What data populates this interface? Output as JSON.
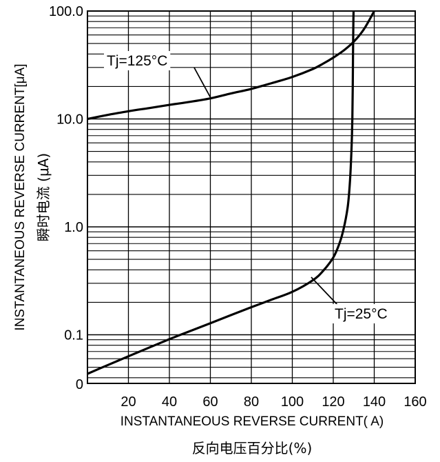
{
  "chart_data": {
    "type": "line",
    "title": "",
    "xlabel": "INSTANTANEOUS REVERSE CURRENT( A)",
    "xlabel_cn": "反向电压百分比(%)",
    "ylabel": "INSTANTANEOUS REVERSE CURRENT[μA]",
    "ylabel_cn": "瞬时电流 (μA)",
    "xlim": [
      0,
      160
    ],
    "ylim": [
      0.0316,
      100
    ],
    "y_scale": "log",
    "grid": true,
    "x_ticks": [
      "20",
      "40",
      "60",
      "80",
      "100",
      "120",
      "140",
      "160"
    ],
    "y_ticks": [
      {
        "label": "100.0",
        "value": 100
      },
      {
        "label": "10.0",
        "value": 10
      },
      {
        "label": "1.0",
        "value": 1
      },
      {
        "label": "0.1",
        "value": 0.1
      }
    ],
    "y_zero_label": "0",
    "series": [
      {
        "name": "Tj=125°C",
        "x": [
          0,
          10,
          20,
          30,
          40,
          50,
          60,
          70,
          80,
          90,
          100,
          110,
          115,
          120,
          125,
          130,
          135,
          140
        ],
        "y": [
          10,
          10.9,
          11.8,
          12.6,
          13.5,
          14.4,
          15.5,
          17.2,
          19,
          21.5,
          24.5,
          29,
          32.5,
          37,
          43,
          52,
          68,
          100
        ]
      },
      {
        "name": "Tj=25°C",
        "x": [
          0,
          10,
          20,
          30,
          40,
          50,
          60,
          70,
          80,
          90,
          100,
          110,
          115,
          120,
          123,
          125,
          127,
          128,
          128.5,
          129,
          129.3,
          129.5,
          129.6,
          129.7,
          129.8,
          129.9
        ],
        "y": [
          0.0435,
          0.0525,
          0.0632,
          0.076,
          0.091,
          0.108,
          0.128,
          0.152,
          0.18,
          0.212,
          0.25,
          0.32,
          0.39,
          0.52,
          0.7,
          0.95,
          1.5,
          2.4,
          3.5,
          6,
          10,
          20,
          35,
          55,
          80,
          100
        ]
      }
    ]
  }
}
